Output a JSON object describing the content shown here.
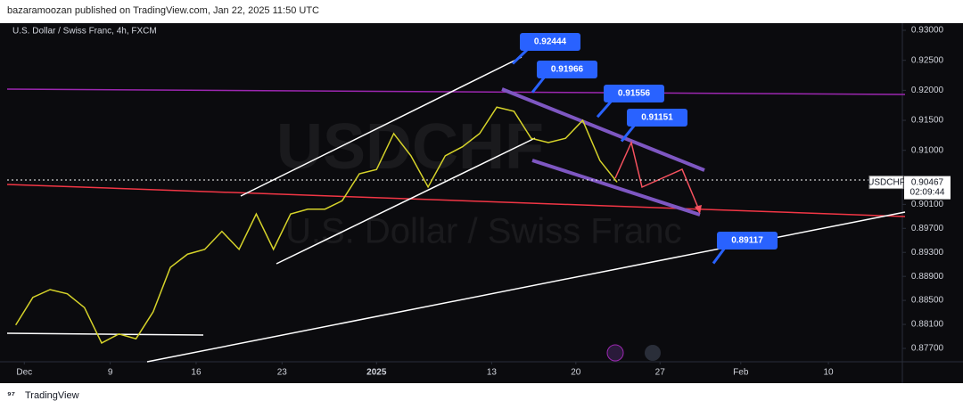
{
  "header": {
    "text": "bazaramoozan published on TradingView.com, Jan 22, 2025 11:50 UTC"
  },
  "footer": {
    "brand": "TradingView"
  },
  "chart_data": {
    "type": "line",
    "title": "U.S. Dollar / Swiss Franc, 4h, FXCM",
    "watermark": {
      "symbol": "USDCHF",
      "name": "U.S. Dollar / Swiss Franc"
    },
    "x": [
      -0.5,
      0.5,
      1.5,
      2.5,
      3.5,
      4.5,
      5.5,
      6.5,
      7.5,
      8.5,
      9.5,
      10.5,
      11.5,
      12.5,
      13.5,
      14.5,
      15.5,
      16.5,
      17.5,
      18.5,
      19.5,
      20.5,
      21.5,
      22.5,
      23.5,
      24.5,
      25.5,
      26.5,
      27.5,
      28.5,
      29.5,
      30.5,
      31.5,
      32.5,
      33.5,
      34.5
    ],
    "values": [
      0.8809,
      0.8855,
      0.8868,
      0.8861,
      0.8838,
      0.8779,
      0.8794,
      0.8786,
      0.8831,
      0.8905,
      0.8927,
      0.8935,
      0.8965,
      0.8935,
      0.8994,
      0.8935,
      0.8994,
      0.9002,
      0.9002,
      0.9016,
      0.9061,
      0.9068,
      0.9128,
      0.9091,
      0.9039,
      0.9091,
      0.9106,
      0.9128,
      0.9172,
      0.9165,
      0.912,
      0.9113,
      0.912,
      0.915,
      0.9083,
      0.9047
    ],
    "color": "#d6d32a",
    "xlim": [
      -1,
      51
    ],
    "ylim": [
      0.87492,
      0.93119
    ],
    "xticks": [
      {
        "value": 0,
        "label": "Dec"
      },
      {
        "value": 5,
        "label": "9"
      },
      {
        "value": 10,
        "label": "16"
      },
      {
        "value": 15,
        "label": "23"
      },
      {
        "value": 20.5,
        "label": "2025"
      },
      {
        "value": 27.2,
        "label": "13"
      },
      {
        "value": 32.1,
        "label": "20"
      },
      {
        "value": 37,
        "label": "27"
      },
      {
        "value": 41.7,
        "label": "Feb"
      },
      {
        "value": 46.8,
        "label": "10"
      }
    ],
    "yticks": [
      {
        "value": 0.93,
        "label": "0.93000"
      },
      {
        "value": 0.925,
        "label": "0.92500"
      },
      {
        "value": 0.92,
        "label": "0.92000"
      },
      {
        "value": 0.915,
        "label": "0.91500"
      },
      {
        "value": 0.91,
        "label": "0.91000"
      },
      {
        "value": 0.901,
        "label": "0.90100"
      },
      {
        "value": 0.897,
        "label": "0.89700"
      },
      {
        "value": 0.893,
        "label": "0.89300"
      },
      {
        "value": 0.889,
        "label": "0.88900"
      },
      {
        "value": 0.885,
        "label": "0.88500"
      },
      {
        "value": 0.881,
        "label": "0.88100"
      },
      {
        "value": 0.877,
        "label": "0.87700"
      }
    ],
    "last_price": {
      "symbol": "USDCHF",
      "value": 0.90467,
      "countdown": "02:09:44"
    },
    "annotations": [
      0.92444,
      0.91966,
      0.91556,
      0.91151,
      0.89117
    ]
  }
}
